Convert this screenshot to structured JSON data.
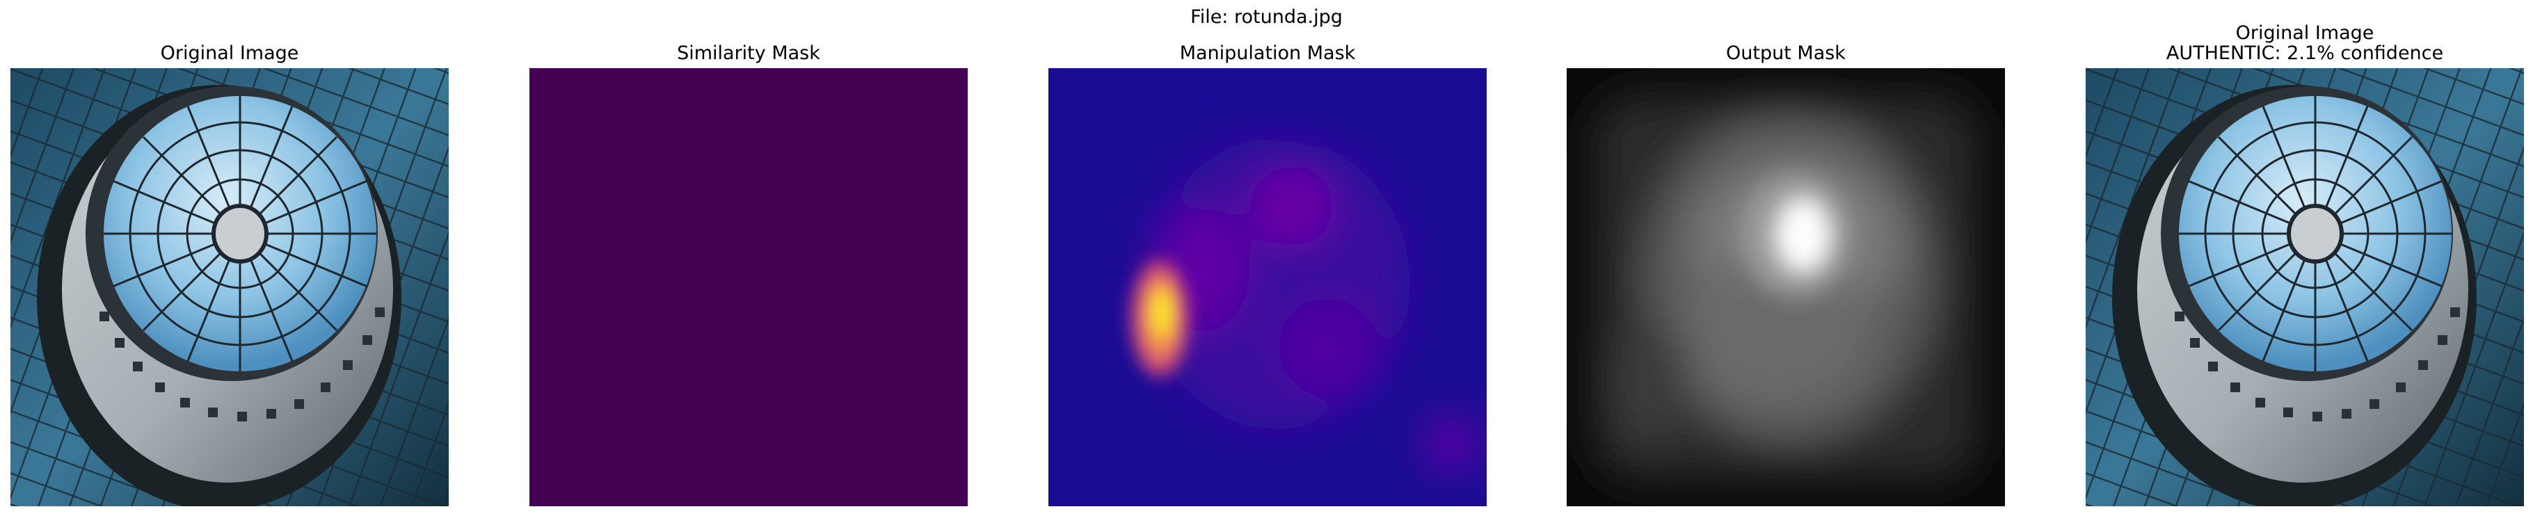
{
  "figure_title": "File: rotunda.jpg",
  "panels": [
    {
      "title": "Original Image",
      "image": "rotunda-photo"
    },
    {
      "title": "Similarity Mask",
      "image": "similarity-mask-uniform",
      "color": "#440154"
    },
    {
      "title": "Manipulation Mask",
      "image": "manipulation-mask-heatmap",
      "colormap": "plasma"
    },
    {
      "title": "Output Mask",
      "image": "output-mask-grayscale",
      "colormap": "gray"
    },
    {
      "title_line1": "Original Image",
      "title_line2": "AUTHENTIC: 2.1% confidence",
      "image": "rotunda-photo"
    }
  ]
}
